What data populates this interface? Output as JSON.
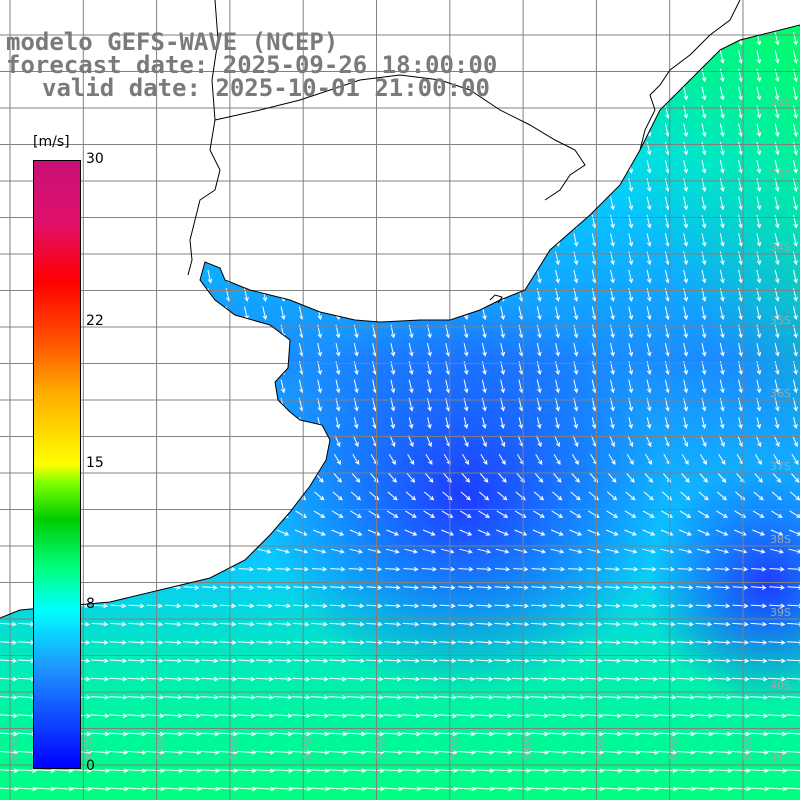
{
  "title": {
    "line1": "modelo GEFS-WAVE (NCEP)",
    "line2": "forecast date: 2025-09-26 18:00:00",
    "line3": "valid date: 2025-10-01 21:00:00"
  },
  "colorbar": {
    "unit": "[m/s]",
    "ticks": [
      {
        "value": 30,
        "label": "30"
      },
      {
        "value": 22,
        "label": "22"
      },
      {
        "value": 15,
        "label": "15"
      },
      {
        "value": 8,
        "label": "8"
      },
      {
        "value": 0,
        "label": "0"
      }
    ],
    "min": 0,
    "max": 30
  },
  "map": {
    "lat_labels": [
      "32S",
      "33S",
      "34S",
      "35S",
      "36S",
      "37S",
      "38S",
      "39S",
      "40S",
      "41S"
    ],
    "lon_labels": [
      "61W",
      "60W",
      "59W",
      "58W",
      "57W",
      "56W",
      "55W",
      "54W",
      "53W",
      "52W",
      "51W"
    ],
    "colors": {
      "land": "#ffffff",
      "grid": "#808080",
      "coast": "#000000",
      "arrow": "#ffffff"
    },
    "arrow_icon": "wind-arrow-icon"
  }
}
